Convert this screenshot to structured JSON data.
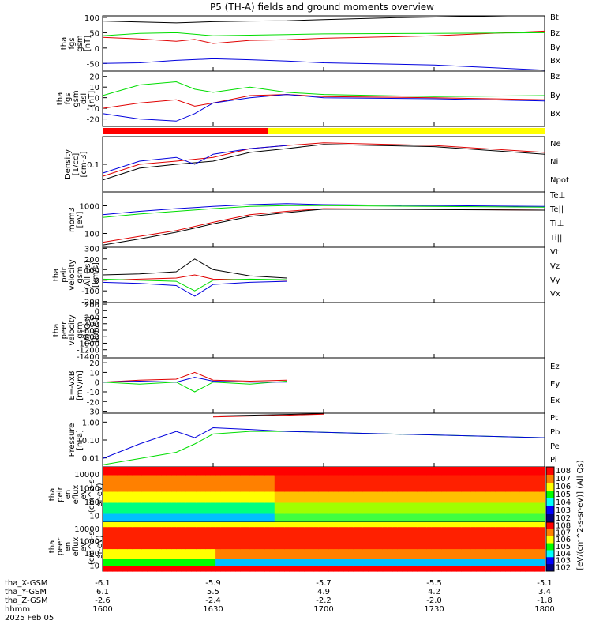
{
  "title": "P5 (TH-A) fields and ground moments overview",
  "chart_data": [
    {
      "type": "line",
      "ylabel": [
        "tha",
        "fgs",
        "gsm",
        "[nT]"
      ],
      "yticks": [
        "100",
        "50",
        "0",
        "-50"
      ],
      "ylim": [
        -75,
        105
      ],
      "series": [
        {
          "name": "Bt",
          "color": "#000000",
          "x": [
            1600,
            1610,
            1620,
            1630,
            1640,
            1650,
            1700,
            1720,
            1740,
            1750
          ],
          "y": [
            88,
            85,
            82,
            86,
            88,
            89,
            93,
            99,
            103,
            105
          ]
        },
        {
          "name": "Bz",
          "color": "#e00000",
          "x": [
            1600,
            1610,
            1620,
            1625,
            1630,
            1640,
            1650,
            1700,
            1730,
            1800
          ],
          "y": [
            35,
            30,
            22,
            28,
            15,
            25,
            27,
            32,
            40,
            55
          ]
        },
        {
          "name": "By",
          "color": "#00dd00",
          "x": [
            1600,
            1610,
            1620,
            1630,
            1640,
            1650,
            1700,
            1730,
            1800
          ],
          "y": [
            40,
            48,
            50,
            40,
            42,
            44,
            46,
            48,
            50
          ]
        },
        {
          "name": "Bx",
          "color": "#0000dd",
          "x": [
            1600,
            1610,
            1620,
            1630,
            1640,
            1650,
            1700,
            1730,
            1800
          ],
          "y": [
            -50,
            -48,
            -40,
            -35,
            -38,
            -42,
            -48,
            -55,
            -72
          ]
        }
      ]
    },
    {
      "type": "line",
      "ylabel": [
        "tha",
        "fgs",
        "gsm",
        "dsl",
        "[nT]"
      ],
      "yticks": [
        "20",
        "10",
        "0",
        "-10",
        "-20"
      ],
      "ylim": [
        -27,
        25
      ],
      "series": [
        {
          "name": "Bz",
          "color": "#e00000",
          "x": [
            1600,
            1610,
            1620,
            1625,
            1630,
            1640,
            1650,
            1700,
            1730,
            1800
          ],
          "y": [
            -10,
            -5,
            -2,
            -8,
            -5,
            2,
            3,
            1,
            0,
            -2
          ]
        },
        {
          "name": "By",
          "color": "#00dd00",
          "x": [
            1600,
            1610,
            1620,
            1625,
            1630,
            1640,
            1650,
            1700,
            1730,
            1800
          ],
          "y": [
            2,
            12,
            15,
            8,
            5,
            10,
            5,
            3,
            1,
            2
          ]
        },
        {
          "name": "Bx",
          "color": "#0000dd",
          "x": [
            1600,
            1610,
            1620,
            1625,
            1630,
            1640,
            1650,
            1700,
            1730,
            1800
          ],
          "y": [
            -15,
            -20,
            -22,
            -15,
            -5,
            0,
            3,
            0,
            -1,
            -3
          ]
        }
      ]
    },
    {
      "type": "line",
      "ylabel": [
        "Density",
        "[1/cc]",
        "[cm-3]"
      ],
      "yticks": [
        "0.1"
      ],
      "ylog": true,
      "ylim": [
        0.02,
        0.5
      ],
      "series": [
        {
          "name": "Ne",
          "color": "#e00000",
          "x": [
            1600,
            1610,
            1620,
            1630,
            1640,
            1650,
            1700,
            1730,
            1800
          ],
          "y": [
            0.05,
            0.1,
            0.12,
            0.15,
            0.25,
            0.3,
            0.35,
            0.3,
            0.2
          ]
        },
        {
          "name": "Ni",
          "color": "#000000",
          "x": [
            1600,
            1610,
            1620,
            1630,
            1640,
            1650,
            1700,
            1730,
            1800
          ],
          "y": [
            0.04,
            0.08,
            0.1,
            0.12,
            0.2,
            0.25,
            0.32,
            0.28,
            0.18
          ]
        },
        {
          "name": "Npot",
          "color": "#0000dd",
          "x": [
            1600,
            1610,
            1620,
            1625,
            1630,
            1640,
            1650
          ],
          "y": [
            0.06,
            0.12,
            0.15,
            0.1,
            0.18,
            0.25,
            0.3
          ]
        }
      ]
    },
    {
      "type": "line",
      "ylabel": [
        "mom3",
        "[eV]"
      ],
      "yticks": [
        "1000",
        "100"
      ],
      "ylog": true,
      "ylim": [
        100,
        10000
      ],
      "series": [
        {
          "name": "Te⊥",
          "color": "#e00000",
          "x": [
            1600,
            1610,
            1620,
            1630,
            1640,
            1650,
            1700,
            1800
          ],
          "y": [
            150,
            250,
            400,
            800,
            1500,
            2000,
            2500,
            2200
          ]
        },
        {
          "name": "Te||",
          "color": "#000000",
          "x": [
            1600,
            1610,
            1620,
            1630,
            1640,
            1650,
            1700,
            1800
          ],
          "y": [
            120,
            200,
            350,
            700,
            1300,
            1800,
            2400,
            2200
          ]
        },
        {
          "name": "Ti⊥",
          "color": "#0000dd",
          "x": [
            1600,
            1610,
            1620,
            1630,
            1640,
            1650,
            1700,
            1800
          ],
          "y": [
            1500,
            2000,
            2500,
            3000,
            3500,
            3800,
            3500,
            3000
          ]
        },
        {
          "name": "Ti||",
          "color": "#00dd00",
          "x": [
            1600,
            1610,
            1620,
            1630,
            1640,
            1650,
            1700,
            1800
          ],
          "y": [
            1200,
            1600,
            2000,
            2500,
            3000,
            3200,
            3200,
            2800
          ]
        }
      ]
    },
    {
      "type": "line",
      "ylabel": [
        "tha",
        "peir",
        "velocity",
        "gsm",
        "(All Qs)",
        "[km/s]"
      ],
      "yticks": [
        "300",
        "200",
        "100",
        "0",
        "-100",
        "-200"
      ],
      "ylim": [
        -210,
        310
      ],
      "series": [
        {
          "name": "Vt",
          "color": "#000000",
          "x": [
            1600,
            1610,
            1620,
            1625,
            1630,
            1640,
            1650
          ],
          "y": [
            50,
            60,
            80,
            200,
            100,
            40,
            20
          ]
        },
        {
          "name": "Vz",
          "color": "#e00000",
          "x": [
            1600,
            1610,
            1620,
            1625,
            1630,
            1640,
            1650
          ],
          "y": [
            0,
            10,
            20,
            50,
            10,
            5,
            0
          ]
        },
        {
          "name": "Vy",
          "color": "#00dd00",
          "x": [
            1600,
            1610,
            1620,
            1625,
            1630,
            1640,
            1650
          ],
          "y": [
            10,
            0,
            -10,
            -100,
            0,
            10,
            5
          ]
        },
        {
          "name": "Vx",
          "color": "#0000dd",
          "x": [
            1600,
            1610,
            1620,
            1625,
            1630,
            1640,
            1650
          ],
          "y": [
            -20,
            -30,
            -50,
            -150,
            -40,
            -20,
            -10
          ]
        }
      ]
    },
    {
      "type": "line",
      "ylabel": [
        "tha",
        "peer",
        "velocity",
        "gsm",
        "(All Qs)",
        "[km/s]"
      ],
      "yticks": [
        "200",
        "0",
        "-200",
        "-400",
        "-600",
        "-800",
        "-1000",
        "-1200",
        "-1400"
      ],
      "ylim": [
        -1450,
        250
      ],
      "series": [
        {
          "name": "Vt",
          "color": "#000000",
          "x": [],
          "y": []
        },
        {
          "name": "Vz",
          "color": "#e00000",
          "x": [],
          "y": []
        },
        {
          "name": "Vy",
          "color": "#00dd00",
          "x": [],
          "y": []
        },
        {
          "name": "Vx",
          "color": "#0000dd",
          "x": [],
          "y": []
        }
      ]
    },
    {
      "type": "line",
      "ylabel": [
        "E=-VxB",
        "[mV/m]"
      ],
      "yticks": [
        "20",
        "10",
        "0",
        "-10",
        "-20",
        "-30"
      ],
      "ylim": [
        -32,
        25
      ],
      "series": [
        {
          "name": "Ez",
          "color": "#e00000",
          "x": [
            1600,
            1610,
            1620,
            1625,
            1630,
            1640,
            1650
          ],
          "y": [
            0,
            2,
            3,
            10,
            2,
            1,
            2
          ]
        },
        {
          "name": "Ey",
          "color": "#00dd00",
          "x": [
            1600,
            1610,
            1620,
            1625,
            1630,
            1640,
            1650
          ],
          "y": [
            0,
            -2,
            0,
            -10,
            0,
            -2,
            1
          ]
        },
        {
          "name": "Ex",
          "color": "#0000dd",
          "x": [
            1600,
            1610,
            1620,
            1625,
            1630,
            1640,
            1650
          ],
          "y": [
            0,
            1,
            0,
            5,
            1,
            0,
            0
          ]
        }
      ]
    },
    {
      "type": "line",
      "ylabel": [
        "Pressure",
        "[nPa]"
      ],
      "yticks": [
        "1.00",
        "0.10",
        "0.01"
      ],
      "ylog": true,
      "ylim": [
        0.004,
        1.5
      ],
      "series": [
        {
          "name": "Pt",
          "color": "#000000",
          "x": [
            1630,
            1640,
            1650,
            1700
          ],
          "y": [
            1.1,
            1.2,
            1.3,
            1.4
          ]
        },
        {
          "name": "Pb",
          "color": "#e00000",
          "x": [
            1630,
            1640,
            1650,
            1700
          ],
          "y": [
            1.0,
            1.1,
            1.2,
            1.35
          ]
        },
        {
          "name": "Pe",
          "color": "#00dd00",
          "x": [
            1600,
            1610,
            1620,
            1625,
            1630,
            1640,
            1650,
            1700,
            1800
          ],
          "y": [
            0.005,
            0.01,
            0.02,
            0.05,
            0.15,
            0.2,
            0.2,
            0.18,
            0.1
          ]
        },
        {
          "name": "Pi",
          "color": "#0000dd",
          "x": [
            1600,
            1610,
            1620,
            1625,
            1630,
            1640,
            1650,
            1700,
            1800
          ],
          "y": [
            0.01,
            0.05,
            0.2,
            0.1,
            0.3,
            0.25,
            0.2,
            0.18,
            0.1
          ]
        }
      ]
    },
    {
      "type": "heatmap",
      "ylabel": [
        "tha",
        "peir",
        "en",
        "eflux",
        "eV",
        "(cm^2-s-",
        "sr-eV)"
      ],
      "yticks": [
        "10000",
        "1000",
        "100",
        "10"
      ],
      "colorbar_ticks": [
        "10^8",
        "10^7",
        "10^6",
        "10^5",
        "10^4",
        "10^3",
        "10^2"
      ]
    },
    {
      "type": "heatmap",
      "ylabel": [
        "tha",
        "peer",
        "en",
        "eflux",
        "eV",
        "(cm^2-s-",
        "sr-eV)"
      ],
      "yticks": [
        "10000",
        "1000",
        "100",
        "10"
      ],
      "colorbar_ticks": [
        "10^8",
        "10^7",
        "10^6",
        "10^5",
        "10^4",
        "10^3",
        "10^2"
      ],
      "colorbar_label": "[eV/(cm^2-s-sr-eV)] (All Qs)"
    }
  ],
  "mode_bar": [
    {
      "color": "#ff0000",
      "from": 1600,
      "to": 1645
    },
    {
      "color": "#ffff00",
      "from": 1645,
      "to": 1800
    }
  ],
  "xaxis": {
    "xlim": [
      1600,
      1800
    ],
    "rows": [
      {
        "label": "tha_X-GSM",
        "values": [
          "-6.1",
          "-5.9",
          "-5.7",
          "-5.5",
          "-5.1"
        ]
      },
      {
        "label": "tha_Y-GSM",
        "values": [
          "6.1",
          "5.5",
          "4.9",
          "4.2",
          "3.4"
        ]
      },
      {
        "label": "tha_Z-GSM",
        "values": [
          "-2.6",
          "-2.4",
          "-2.2",
          "-2.0",
          "-1.8"
        ]
      },
      {
        "label": "hhmm",
        "values": [
          "1600",
          "1630",
          "1700",
          "1730",
          "1800"
        ]
      }
    ],
    "date": "2025 Feb 05"
  }
}
